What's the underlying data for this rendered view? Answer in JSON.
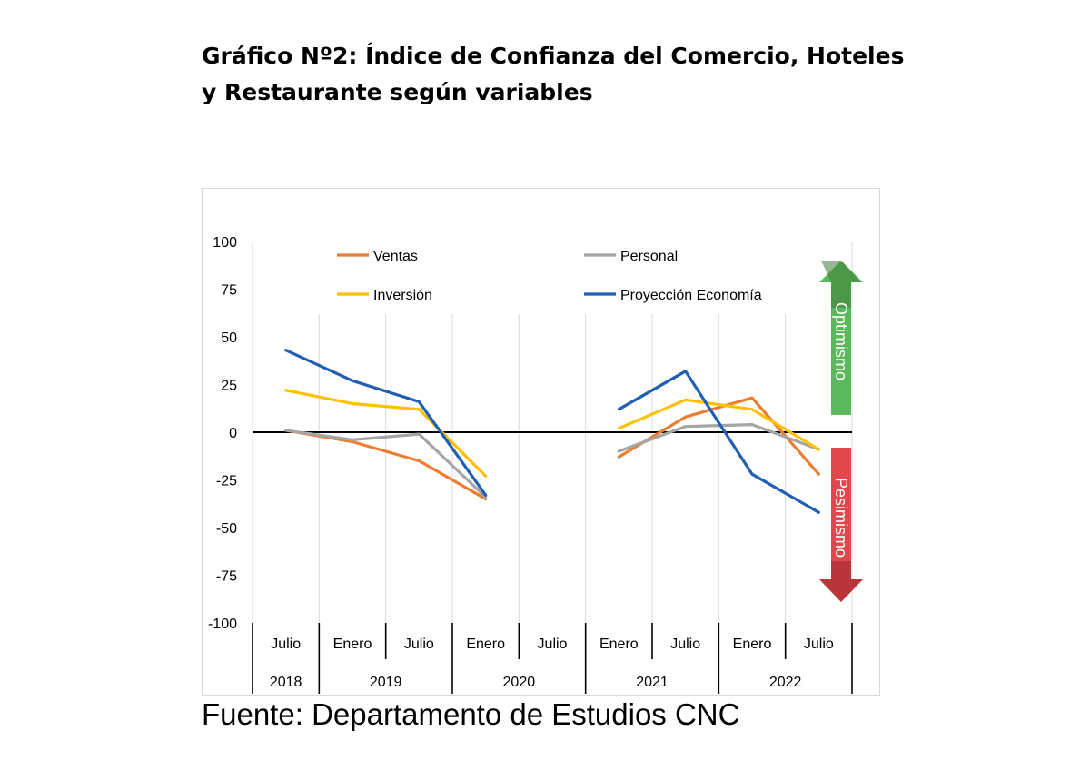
{
  "title_line1": "Gráfico Nº2: Índice de Confianza del Comercio, Hoteles",
  "title_line2": "y Restaurante según variables",
  "source": "Fuente: Departamento de Estudios CNC",
  "arrows": {
    "up": {
      "label": "Optimismo",
      "color": "#5cb85c"
    },
    "down": {
      "label": "Pesimismo",
      "color": "#e0484d"
    }
  },
  "chart_data": {
    "type": "line",
    "ylim": [
      -100,
      100
    ],
    "yticks": [
      100,
      75,
      50,
      25,
      0,
      -25,
      -50,
      -75,
      -100
    ],
    "grid": "vertical",
    "legend": "top",
    "categories": [
      "Julio",
      "Enero",
      "Julio",
      "Enero",
      "Julio",
      "Enero",
      "Julio",
      "Enero",
      "Julio"
    ],
    "years": [
      {
        "label": "2018",
        "span": [
          0,
          0
        ]
      },
      {
        "label": "2019",
        "span": [
          1,
          2
        ]
      },
      {
        "label": "2020",
        "span": [
          3,
          4
        ]
      },
      {
        "label": "2021",
        "span": [
          5,
          6
        ]
      },
      {
        "label": "2022",
        "span": [
          7,
          8
        ]
      }
    ],
    "x": [
      0,
      0.5,
      1,
      1.5,
      2,
      2.5,
      3,
      3.5,
      4,
      4.5,
      5,
      5.5,
      6,
      6.5,
      7,
      7.5,
      8,
      8.5
    ],
    "series": [
      {
        "name": "Ventas",
        "color": "#ed7d31",
        "values": [
          1,
          null,
          -5,
          null,
          -15,
          null,
          -35,
          null,
          null,
          null,
          -13,
          null,
          8,
          null,
          18,
          null,
          -22,
          null
        ]
      },
      {
        "name": "Personal",
        "color": "#a5a5a5",
        "values": [
          1,
          null,
          -4,
          null,
          -1,
          null,
          -34,
          null,
          null,
          null,
          -10,
          null,
          3,
          null,
          4,
          null,
          -9,
          null
        ]
      },
      {
        "name": "Inversión",
        "color": "#ffc000",
        "values": [
          22,
          null,
          15,
          null,
          12,
          null,
          -23,
          null,
          null,
          null,
          2,
          null,
          17,
          null,
          12,
          null,
          -9,
          null
        ]
      },
      {
        "name": "Proyección Economía",
        "color": "#1f5fb4",
        "values": [
          43,
          null,
          27,
          null,
          16,
          null,
          -33,
          null,
          null,
          null,
          12,
          null,
          32,
          null,
          -22,
          null,
          -42,
          null
        ]
      }
    ]
  }
}
